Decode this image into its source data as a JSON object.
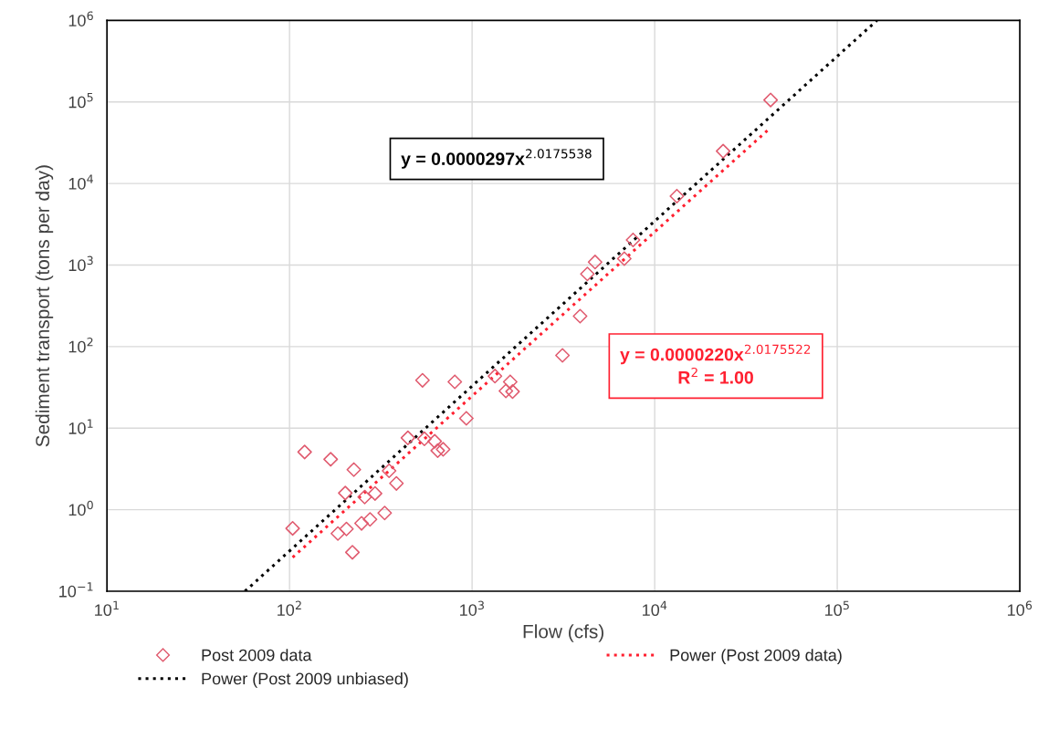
{
  "chart_data": {
    "type": "scatter",
    "xlabel": "Flow (cfs)",
    "ylabel": "Sediment transport (tons per day)",
    "log": "xy",
    "xlim": [
      10,
      1000000
    ],
    "ylim": [
      0.1,
      1000000
    ],
    "xticks": [
      {
        "value": 10,
        "label": "10$^{1}$"
      },
      {
        "value": 100,
        "label": "10$^{2}$"
      },
      {
        "value": 1000,
        "label": "10$^{3}$"
      },
      {
        "value": 10000,
        "label": "10$^{4}$"
      },
      {
        "value": 100000,
        "label": "10$^{5}$"
      },
      {
        "value": 1000000,
        "label": "10$^{6}$"
      }
    ],
    "yticks": [
      {
        "value": 0.1,
        "label": "10$^{−1}$"
      },
      {
        "value": 1,
        "label": "10$^{0}$"
      },
      {
        "value": 10,
        "label": "10$^{1}$"
      },
      {
        "value": 100,
        "label": "10$^{2}$"
      },
      {
        "value": 1000,
        "label": "10$^{3}$"
      },
      {
        "value": 10000,
        "label": "10$^{4}$"
      },
      {
        "value": 100000,
        "label": "10$^{5}$"
      },
      {
        "value": 1000000,
        "label": "10$^{6}$"
      }
    ],
    "grid": true,
    "legend": "bottom",
    "series": [
      {
        "name": "Post 2009 data",
        "color": "#e05a6e",
        "marker": "diamond",
        "x": [
          104,
          121,
          168,
          225,
          202,
          258,
          294,
          184,
          205,
          221,
          248,
          276,
          332,
          351,
          385,
          445,
          535,
          548,
          624,
          648,
          694,
          804,
          930,
          1334,
          1617,
          1531,
          1666,
          3126,
          3904,
          4280,
          4716,
          6816,
          7612,
          13230,
          23714,
          43152
        ],
        "values": [
          0.59,
          5.1,
          4.15,
          3.1,
          1.6,
          1.43,
          1.58,
          0.51,
          0.58,
          0.3,
          0.68,
          0.76,
          0.91,
          3.0,
          2.1,
          7.6,
          38.6,
          7.4,
          6.9,
          5.3,
          5.5,
          37,
          13.2,
          43.5,
          37,
          28.6,
          28.1,
          78,
          236,
          778,
          1089,
          1197,
          2033,
          7000,
          24950,
          105700
        ]
      },
      {
        "name": "Power (Post 2009 data)",
        "type": "line",
        "line_style": "dotted",
        "color": "#ff2030",
        "x": [
          104,
          43000
        ],
        "values": [
          0.26,
          48000
        ]
      },
      {
        "name": "Power (Post 2009 unbiased)",
        "type": "line",
        "line_style": "dotted",
        "color": "#000000",
        "x": [
          57,
          165000
        ],
        "values": [
          0.1,
          1000000
        ]
      }
    ],
    "annotations": [
      "y = 0.0000297x$^{2.0175538}$",
      "y = 0.0000220x$^{2.0175522}$\nR$^{2}$ = 1.00"
    ]
  }
}
